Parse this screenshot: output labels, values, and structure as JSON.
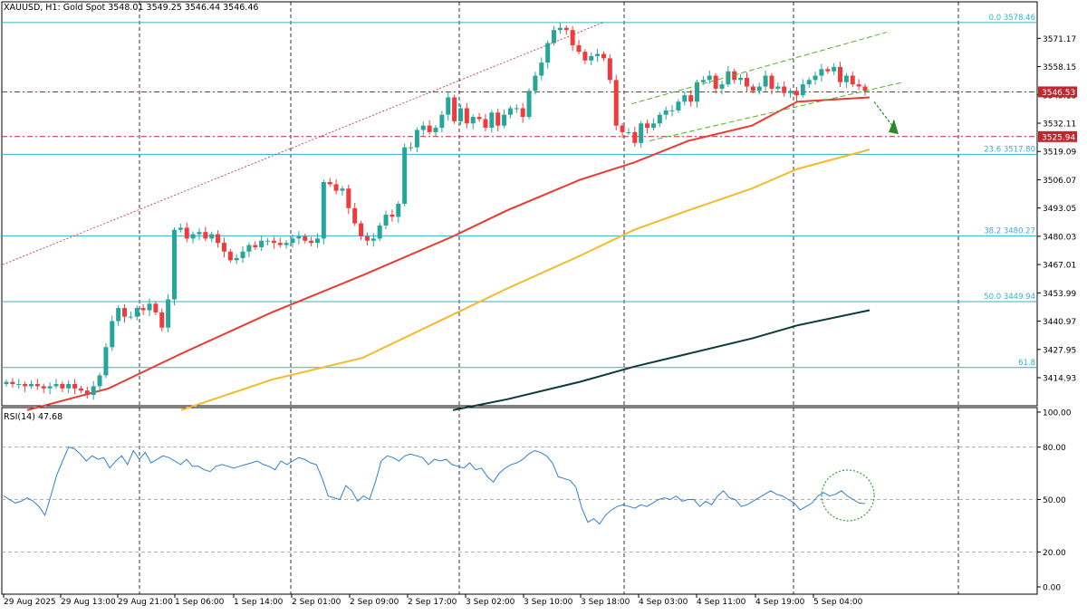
{
  "header": {
    "symbol": "XAUUSD, H1:",
    "instrument": "Gold Spot",
    "ohlc": "3548.01 3549.25 3546.44 3546.46"
  },
  "rsi_header": "RSI(14) 47.68",
  "colors": {
    "bull": "#26a69a",
    "bear": "#ef3b3b",
    "ma_fast": "#e83a2e",
    "ma_mid": "#f4b92c",
    "ma_slow": "#0d3b3b",
    "fib": "#33b1c8",
    "grid": "#000000",
    "rsi": "#2c7fd6",
    "channel": "#5aac2e",
    "price_line": "#c0262e"
  },
  "chart_data": [
    {
      "type": "candlestick",
      "title": "",
      "xlabel": "",
      "ylabel": "",
      "ylim": [
        3402,
        3588
      ],
      "y_ticks": [
        "3571.17",
        "3558.15",
        "3545.13",
        "3532.11",
        "3519.09",
        "3506.07",
        "3493.05",
        "3480.03",
        "3467.01",
        "3453.99",
        "3440.97",
        "3427.95",
        "3414.93"
      ],
      "x_ticks": [
        "29 Aug 2025",
        "29 Aug 13:00",
        "29 Aug 21:00",
        "1 Sep 06:00",
        "1 Sep 14:00",
        "2 Sep 01:00",
        "2 Sep 09:00",
        "2 Sep 17:00",
        "3 Sep 02:00",
        "3 Sep 10:00",
        "3 Sep 18:00",
        "4 Sep 03:00",
        "4 Sep 11:00",
        "4 Sep 19:00",
        "5 Sep 04:00"
      ],
      "candles_close": [
        3413,
        3412,
        3412,
        3411,
        3412,
        3411,
        3410,
        3411,
        3412,
        3410,
        3412,
        3410,
        3409,
        3407,
        3411,
        3416,
        3429,
        3441,
        3447,
        3443,
        3443,
        3447,
        3446,
        3449,
        3445,
        3438,
        3451,
        3483,
        3484,
        3479,
        3481,
        3482,
        3479,
        3481,
        3477,
        3473,
        3469,
        3470,
        3473,
        3476,
        3475,
        3478,
        3478,
        3477,
        3476,
        3477,
        3479,
        3480,
        3478,
        3477,
        3479,
        3505,
        3504,
        3501,
        3502,
        3493,
        3486,
        3480,
        3478,
        3479,
        3485,
        3490,
        3489,
        3495,
        3521,
        3521,
        3529,
        3531,
        3528,
        3530,
        3536,
        3544,
        3533,
        3539,
        3532,
        3535,
        3534,
        3530,
        3537,
        3531,
        3536,
        3539,
        3539,
        3535,
        3547,
        3554,
        3560,
        3569,
        3575,
        3576,
        3575,
        3568,
        3565,
        3561,
        3563,
        3564,
        3562,
        3552,
        3531,
        3528,
        3528,
        3523,
        3532,
        3530,
        3532,
        3536,
        3538,
        3538,
        3542,
        3545,
        3542,
        3551,
        3552,
        3554,
        3548,
        3550,
        3556,
        3552,
        3553,
        3549,
        3547,
        3549,
        3554,
        3548,
        3549,
        3546,
        3547,
        3545,
        3550,
        3552,
        3554,
        3557,
        3556,
        3558,
        3551,
        3554,
        3550,
        3549,
        3547
      ],
      "current_price_label": "3546.53",
      "level_label": "3525.94",
      "levels": [
        {
          "price": 3546.53,
          "label": "3546.53"
        },
        {
          "price": 3525.94,
          "label": "3525.94"
        }
      ],
      "fibonacci": [
        {
          "price": 3578.46,
          "label": "0.0 3578.46"
        },
        {
          "price": 3517.8,
          "label": "23.6 3517.80"
        },
        {
          "price": 3480.27,
          "label": "38.2 3480.27"
        },
        {
          "price": 3449.94,
          "label": "50.0 3449.94"
        },
        {
          "price": 3419.6,
          "label": "61.8"
        }
      ],
      "moving_averages": [
        {
          "x": [
            30,
            120,
            200,
            300,
            400,
            500,
            560,
            640,
            700,
            760,
            830,
            880,
            960
          ],
          "y": [
            3400,
            3410,
            3426,
            3445,
            3462,
            3480,
            3492,
            3506,
            3514,
            3524,
            3531,
            3542,
            3544
          ]
        },
        {
          "x": [
            200,
            300,
            400,
            500,
            560,
            640,
            700,
            760,
            830,
            880,
            960
          ],
          "y": [
            3400,
            3414,
            3424,
            3444,
            3456,
            3471,
            3483,
            3492,
            3502,
            3511,
            3520
          ]
        },
        {
          "x": [
            500,
            560,
            640,
            700,
            760,
            830,
            880,
            960
          ],
          "y": [
            3400,
            3405,
            3413,
            3420,
            3426,
            3433,
            3439,
            3446
          ]
        }
      ]
    },
    {
      "type": "line",
      "title": "",
      "ylim": [
        0,
        100
      ],
      "y_ticks": [
        "100.00",
        "80.00",
        "50.00",
        "20.00",
        "0.00"
      ],
      "levels": [
        80,
        50,
        20
      ],
      "values": [
        52,
        50,
        48,
        49,
        51,
        49,
        46,
        41,
        52,
        64,
        72,
        80,
        79,
        76,
        72,
        75,
        73,
        74,
        68,
        72,
        75,
        70,
        78,
        73,
        77,
        71,
        73,
        75,
        74,
        72,
        70,
        73,
        69,
        69,
        67,
        66,
        69,
        70,
        69,
        68,
        69,
        70,
        71,
        72,
        70,
        69,
        67,
        72,
        70,
        72,
        74,
        73,
        71,
        70,
        62,
        52,
        51,
        50,
        58,
        55,
        49,
        52,
        50,
        60,
        72,
        75,
        74,
        72,
        75,
        76,
        75,
        74,
        70,
        73,
        72,
        73,
        70,
        69,
        68,
        71,
        67,
        68,
        63,
        60,
        65,
        68,
        70,
        71,
        73,
        76,
        78,
        77,
        75,
        71,
        63,
        62,
        61,
        57,
        45,
        37,
        39,
        36,
        41,
        44,
        46,
        47,
        46,
        45,
        47,
        46,
        48,
        50,
        51,
        50,
        52,
        49,
        50,
        50,
        46,
        49,
        47,
        52,
        55,
        51,
        50,
        46,
        47,
        49,
        51,
        53,
        55,
        53,
        52,
        50,
        48,
        44,
        46,
        48,
        52,
        54,
        52,
        53,
        55,
        52,
        50,
        48,
        47.68
      ]
    }
  ]
}
